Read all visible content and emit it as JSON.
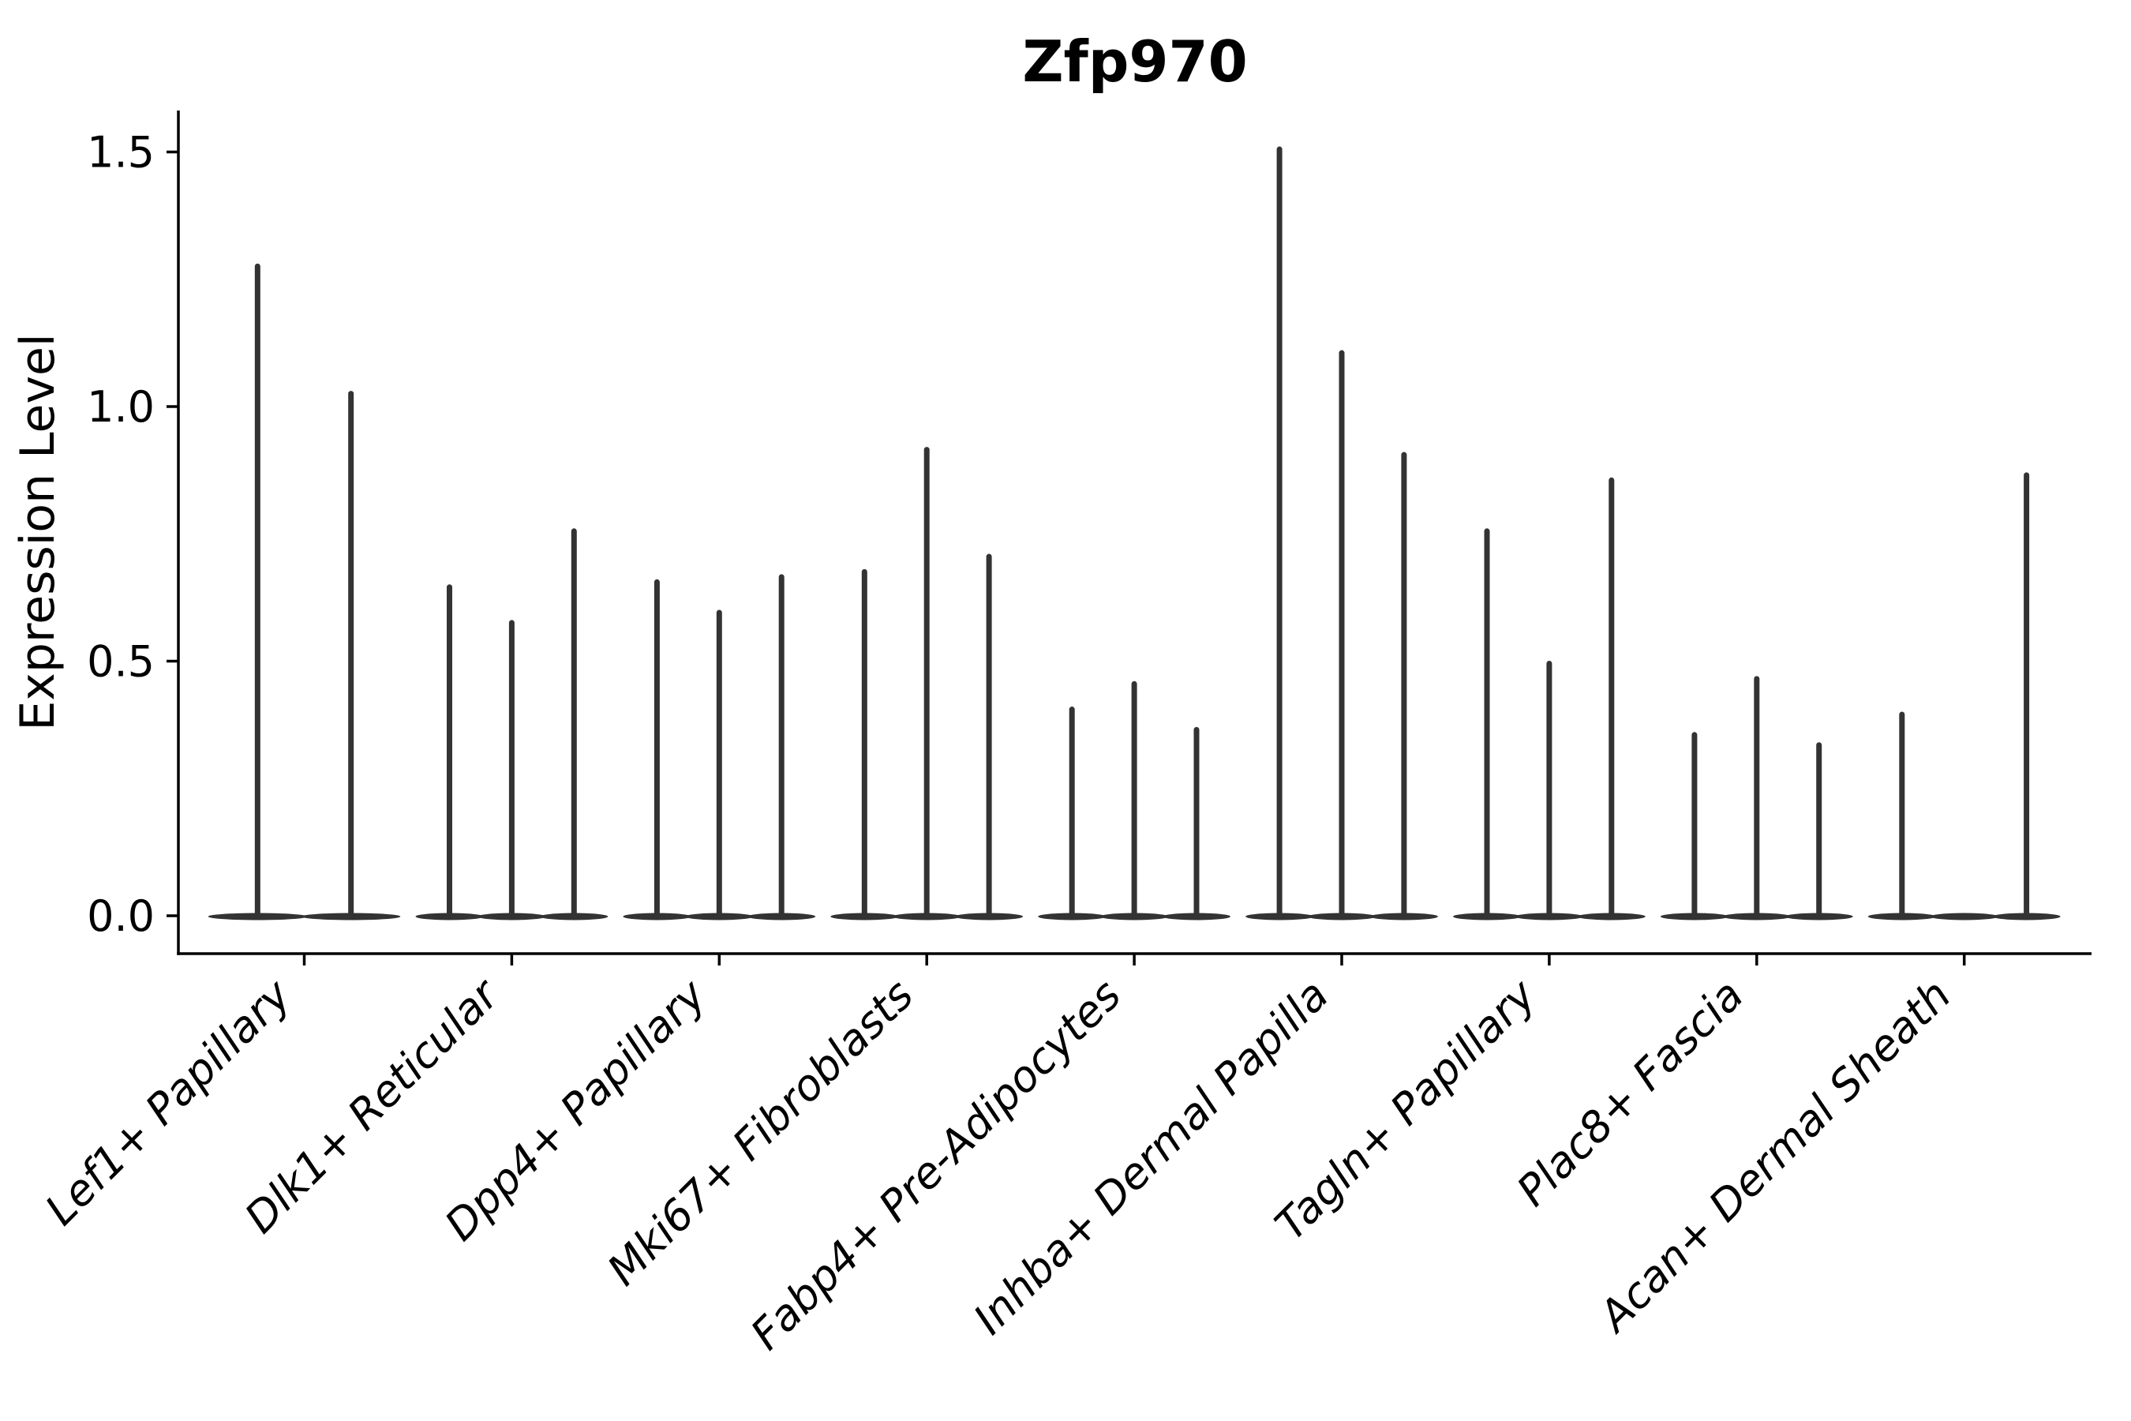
{
  "chart_data": {
    "type": "violin",
    "title": "Zfp970",
    "xlabel": "",
    "ylabel": "Expression Level",
    "ytick_labels": [
      "0.0",
      "0.5",
      "1.0",
      "1.5"
    ],
    "yticks": [
      0.0,
      0.5,
      1.0,
      1.5
    ],
    "ylim": [
      -0.07,
      1.58
    ],
    "grid": false,
    "legend": "none",
    "note": "Needle-thin violin plot; each category holds 2-3 sub-violins (flat base at 0 with a thin spike up to the max expression value).",
    "categories": [
      "Lef1+ Papillary",
      "Dlk1+ Reticular",
      "Dpp4+ Papillary",
      "Mki67+ Fibroblasts",
      "Fabp4+ Pre-Adipocytes",
      "Inhba+ Dermal Papilla",
      "Tagln+ Papillary",
      "Plac8+ Fascia",
      "Acan+ Dermal Sheath"
    ],
    "groups": [
      {
        "category": "Lef1+ Papillary",
        "spike_heights": [
          1.28,
          1.03
        ]
      },
      {
        "category": "Dlk1+ Reticular",
        "spike_heights": [
          0.65,
          0.58,
          0.76
        ]
      },
      {
        "category": "Dpp4+ Papillary",
        "spike_heights": [
          0.66,
          0.6,
          0.67
        ]
      },
      {
        "category": "Mki67+ Fibroblasts",
        "spike_heights": [
          0.68,
          0.92,
          0.71
        ]
      },
      {
        "category": "Fabp4+ Pre-Adipocytes",
        "spike_heights": [
          0.41,
          0.46,
          0.37
        ]
      },
      {
        "category": "Inhba+ Dermal Papilla",
        "spike_heights": [
          1.51,
          1.11,
          0.91
        ]
      },
      {
        "category": "Tagln+ Papillary",
        "spike_heights": [
          0.76,
          0.5,
          0.86
        ]
      },
      {
        "category": "Plac8+ Fascia",
        "spike_heights": [
          0.36,
          0.47,
          0.34
        ]
      },
      {
        "category": "Acan+ Dermal Sheath",
        "spike_heights": [
          0.4,
          0.0,
          0.87
        ]
      }
    ],
    "colors": {
      "violin": "#333333",
      "axis": "#000000",
      "text": "#000000",
      "background": "#ffffff"
    }
  }
}
